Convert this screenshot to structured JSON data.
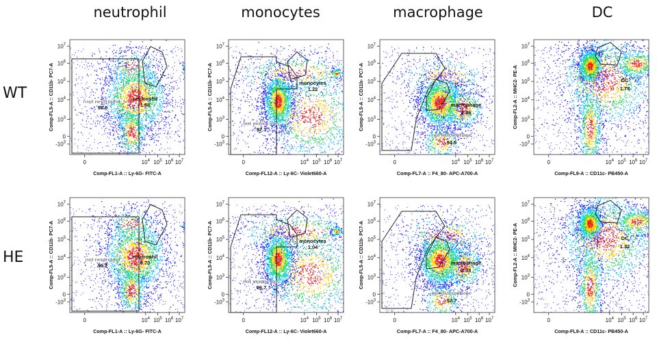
{
  "column_titles": [
    "neutrophil",
    "monocytes",
    "macrophage",
    "DC"
  ],
  "row_labels": [
    "WT",
    "HE"
  ],
  "colors": {
    "hot": "#ff1a00",
    "warm": "#ffd000",
    "mid": "#22dd55",
    "cool": "#00c8ff",
    "cold": "#1a1aff"
  },
  "chart_data": [
    {
      "type": "scatter",
      "title": "neutrophil",
      "row": "WT",
      "xlabel": "Comp-FL1-A :: Ly-6G- FITC-A",
      "ylabel": "Comp-FL5-A :: CD11b- PC7-A",
      "xticks": [
        "0",
        "10^4",
        "10^5",
        "10^6",
        "10^7"
      ],
      "yticks": [
        "-10^3",
        "0",
        "10^3",
        "10^4",
        "10^5",
        "10^6",
        "10^7"
      ],
      "gates": [
        {
          "label": "not neutrophil",
          "value": "98.0"
        },
        {
          "label": "neutrophil",
          "value": "1.88"
        }
      ]
    },
    {
      "type": "scatter",
      "title": "monocytes",
      "row": "WT",
      "xlabel": "Comp-FL12-A :: Ly-6C- Violet660-A",
      "ylabel": "Comp-FL5-A :: CD11b- PC7-A",
      "xticks": [
        "0",
        "10^4",
        "10^5",
        "10^6",
        "10^7"
      ],
      "yticks": [
        "-10^3",
        "0",
        "10^3",
        "10^4",
        "10^5",
        "10^6",
        "10^7"
      ],
      "gates": [
        {
          "label": "monocytes",
          "value": "1.22"
        },
        {
          "label": "not monocytes",
          "value": "97.1"
        }
      ]
    },
    {
      "type": "scatter",
      "title": "macrophage",
      "row": "WT",
      "xlabel": "Comp-FL7-A :: F4_80- APC-A700-A",
      "ylabel": "Comp-FL5-A :: CD11b- PC7-A",
      "xticks": [
        "0",
        "10^4",
        "10^5",
        "10^6",
        "10^7"
      ],
      "yticks": [
        "-10^3",
        "0",
        "10^3",
        "10^4",
        "10^5",
        "10^6",
        "10^7"
      ],
      "gates": [
        {
          "label": "macrophage",
          "value": "2.46"
        },
        {
          "label": "not macrophage",
          "value": "94.9"
        }
      ]
    },
    {
      "type": "scatter",
      "title": "DC",
      "row": "WT",
      "xlabel": "Comp-FL9-A :: CD11c- PB450-A",
      "ylabel": "Comp-FL2-A :: MHC2- PE-A",
      "xticks": [
        "0",
        "10^4",
        "10^5",
        "10^6",
        "10^7"
      ],
      "yticks": [
        "-10^3",
        "0",
        "10^3",
        "10^4",
        "10^5",
        "10^6",
        "10^7"
      ],
      "gates": [
        {
          "label": "DC",
          "value": "1.78"
        }
      ]
    },
    {
      "type": "scatter",
      "title": "neutrophil",
      "row": "HE",
      "xlabel": "Comp-FL1-A :: Ly-6G- FITC-A",
      "ylabel": "Comp-FL5-A :: CD11b- PC7-A",
      "xticks": [
        "0",
        "10^4",
        "10^5",
        "10^6",
        "10^7"
      ],
      "yticks": [
        "-10^3",
        "0",
        "10^3",
        "10^4",
        "10^5",
        "10^6",
        "10^7"
      ],
      "gates": [
        {
          "label": "not neutrophil",
          "value": "99.2"
        },
        {
          "label": "neutrophil",
          "value": "0.70"
        }
      ]
    },
    {
      "type": "scatter",
      "title": "monocytes",
      "row": "HE",
      "xlabel": "Comp-FL12-A :: Ly-6C- Violet660-A",
      "ylabel": "Comp-FL5-A :: CD11b- PC7-A",
      "xticks": [
        "0",
        "10^4",
        "10^5",
        "10^6",
        "10^7"
      ],
      "yticks": [
        "-10^3",
        "0",
        "10^3",
        "10^4",
        "10^5",
        "10^6",
        "10^7"
      ],
      "gates": [
        {
          "label": "monocytes",
          "value": "1.04"
        },
        {
          "label": "not monocytes",
          "value": "96.7"
        }
      ]
    },
    {
      "type": "scatter",
      "title": "macrophage",
      "row": "HE",
      "xlabel": "Comp-FL7-A :: F4_80- APC-A700-A",
      "ylabel": "Comp-FL5-A :: CD11b- PC7-A",
      "xticks": [
        "0",
        "10^4",
        "10^5",
        "10^6",
        "10^7"
      ],
      "yticks": [
        "-10^3",
        "0",
        "10^3",
        "10^4",
        "10^5",
        "10^6",
        "10^7"
      ],
      "gates": [
        {
          "label": "macrophage",
          "value": "4.38"
        },
        {
          "label": "not macrophage",
          "value": "92.7"
        }
      ]
    },
    {
      "type": "scatter",
      "title": "DC",
      "row": "HE",
      "xlabel": "Comp-FL9-A :: CD11c- PB450-A",
      "ylabel": "Comp-FL2-A :: MHC2- PE-A",
      "xticks": [
        "0",
        "10^4",
        "10^5",
        "10^6",
        "10^7"
      ],
      "yticks": [
        "-10^3",
        "0",
        "10^3",
        "10^4",
        "10^5",
        "10^6",
        "10^7"
      ],
      "gates": [
        {
          "label": "DC",
          "value": "1.32"
        }
      ]
    }
  ]
}
